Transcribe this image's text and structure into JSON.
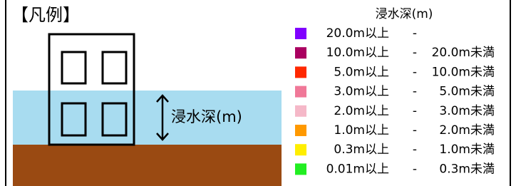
{
  "header": {
    "title": "【凡例】"
  },
  "diagram": {
    "depth_label": "浸水深(m)"
  },
  "legend": {
    "title": "浸水深(m)",
    "separator": "-",
    "rows": [
      {
        "color": "#8000ff",
        "from": "20.0m以上",
        "to": null
      },
      {
        "color": "#aa0060",
        "from": "10.0m以上",
        "to": "20.0m未満"
      },
      {
        "color": "#ff2800",
        "from": "5.0m以上",
        "to": "10.0m未満"
      },
      {
        "color": "#f07898",
        "from": "3.0m以上",
        "to": "5.0m未満"
      },
      {
        "color": "#f5b8c8",
        "from": "2.0m以上",
        "to": "3.0m未満"
      },
      {
        "color": "#ff9900",
        "from": "1.0m以上",
        "to": "2.0m未満"
      },
      {
        "color": "#ffee00",
        "from": "0.3m以上",
        "to": "1.0m未満"
      },
      {
        "color": "#22ee22",
        "from": "0.01m以上",
        "to": "0.3m未満"
      }
    ]
  }
}
